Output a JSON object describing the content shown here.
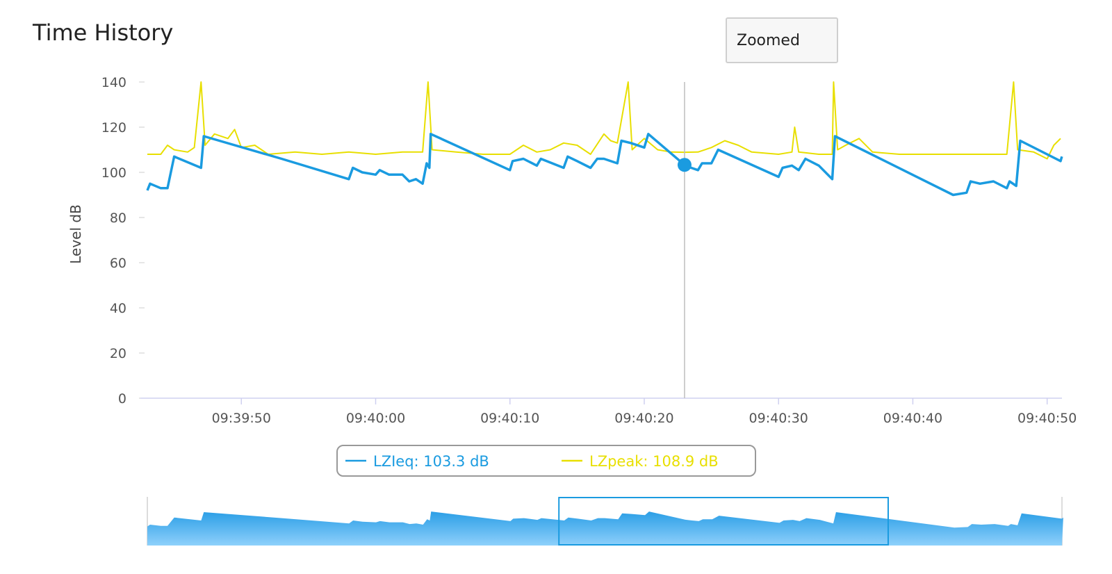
{
  "title": "Time History",
  "zoom_button": "Zoomed",
  "colors": {
    "lzieq": "#1a9be0",
    "lzpeak": "#e8df00",
    "crosshair": "#bdbdbd",
    "axis": "#cfd0f0"
  },
  "legend": {
    "items": [
      {
        "label": "LZIeq: 103.3 dB",
        "color": "#1a9be0"
      },
      {
        "label": "LZpeak: 108.9 dB",
        "color": "#e8df00"
      }
    ]
  },
  "chart_data": {
    "type": "line",
    "title": "Time History",
    "ylabel": "Level dB",
    "xlabel": "",
    "ylim": [
      0,
      140
    ],
    "yticks": [
      0,
      20,
      40,
      60,
      80,
      100,
      120,
      140
    ],
    "x_start": "09:39:43",
    "x_end": "09:40:51",
    "xticks": [
      "09:39:50",
      "09:40:00",
      "09:40:10",
      "09:40:20",
      "09:40:30",
      "09:40:40",
      "09:40:50"
    ],
    "crosshair_x": "09:40:23",
    "crosshair_marker": {
      "series": "LZIeq",
      "y": 103.3
    },
    "series": [
      {
        "name": "LZIeq",
        "color": "#1a9be0",
        "points": [
          [
            "09:39:43",
            92
          ],
          [
            "09:39:43.2",
            95
          ],
          [
            "09:39:44",
            93
          ],
          [
            "09:39:44.5",
            93
          ],
          [
            "09:39:45",
            107
          ],
          [
            "09:39:47",
            102
          ],
          [
            "09:39:47.2",
            116
          ],
          [
            "09:39:53",
            106
          ],
          [
            "09:39:58",
            97
          ],
          [
            "09:39:58.3",
            102
          ],
          [
            "09:39:59",
            100
          ],
          [
            "09:40:00",
            99
          ],
          [
            "09:40:00.3",
            101
          ],
          [
            "09:40:01",
            99
          ],
          [
            "09:40:02",
            99
          ],
          [
            "09:40:02.5",
            96
          ],
          [
            "09:40:03",
            97
          ],
          [
            "09:40:03.5",
            95
          ],
          [
            "09:40:03.8",
            104
          ],
          [
            "09:40:04",
            102
          ],
          [
            "09:40:04.1",
            117
          ],
          [
            "09:40:10",
            101
          ],
          [
            "09:40:10.2",
            105
          ],
          [
            "09:40:11",
            106
          ],
          [
            "09:40:12",
            103
          ],
          [
            "09:40:12.3",
            106
          ],
          [
            "09:40:14",
            102
          ],
          [
            "09:40:14.3",
            107
          ],
          [
            "09:40:15",
            105
          ],
          [
            "09:40:16",
            102
          ],
          [
            "09:40:16.5",
            106
          ],
          [
            "09:40:17",
            106
          ],
          [
            "09:40:18",
            104
          ],
          [
            "09:40:18.3",
            114
          ],
          [
            "09:40:19",
            113
          ],
          [
            "09:40:20",
            111
          ],
          [
            "09:40:20.3",
            117
          ],
          [
            "09:40:23",
            103.3
          ],
          [
            "09:40:23.5",
            102
          ],
          [
            "09:40:24",
            101
          ],
          [
            "09:40:24.3",
            104
          ],
          [
            "09:40:25",
            104
          ],
          [
            "09:40:25.5",
            110
          ],
          [
            "09:40:30",
            98
          ],
          [
            "09:40:30.3",
            102
          ],
          [
            "09:40:31",
            103
          ],
          [
            "09:40:31.5",
            101
          ],
          [
            "09:40:32",
            106
          ],
          [
            "09:40:33",
            103
          ],
          [
            "09:40:34",
            97
          ],
          [
            "09:40:34.2",
            116
          ],
          [
            "09:40:43",
            90
          ],
          [
            "09:40:44",
            91
          ],
          [
            "09:40:44.3",
            96
          ],
          [
            "09:40:45",
            95
          ],
          [
            "09:40:46",
            96
          ],
          [
            "09:40:47",
            93
          ],
          [
            "09:40:47.2",
            96
          ],
          [
            "09:40:47.7",
            94
          ],
          [
            "09:40:48",
            114
          ],
          [
            "09:40:51",
            105
          ],
          [
            "09:40:51.1",
            107
          ]
        ]
      },
      {
        "name": "LZpeak",
        "color": "#e8df00",
        "points": [
          [
            "09:39:43",
            108
          ],
          [
            "09:39:44",
            108
          ],
          [
            "09:39:44.5",
            112
          ],
          [
            "09:39:45",
            110
          ],
          [
            "09:39:46",
            109
          ],
          [
            "09:39:46.5",
            111
          ],
          [
            "09:39:47",
            140
          ],
          [
            "09:39:47.3",
            112
          ],
          [
            "09:39:48",
            117
          ],
          [
            "09:39:49",
            115
          ],
          [
            "09:39:49.5",
            119
          ],
          [
            "09:39:50",
            111
          ],
          [
            "09:39:51",
            112
          ],
          [
            "09:39:52",
            108
          ],
          [
            "09:39:54",
            109
          ],
          [
            "09:39:56",
            108
          ],
          [
            "09:39:58",
            109
          ],
          [
            "09:40:00",
            108
          ],
          [
            "09:40:02",
            109
          ],
          [
            "09:40:03.5",
            109
          ],
          [
            "09:40:03.9",
            140
          ],
          [
            "09:40:04.2",
            110
          ],
          [
            "09:40:06",
            109
          ],
          [
            "09:40:08",
            108
          ],
          [
            "09:40:10",
            108
          ],
          [
            "09:40:11",
            112
          ],
          [
            "09:40:12",
            109
          ],
          [
            "09:40:13",
            110
          ],
          [
            "09:40:14",
            113
          ],
          [
            "09:40:15",
            112
          ],
          [
            "09:40:16",
            108
          ],
          [
            "09:40:17",
            117
          ],
          [
            "09:40:17.5",
            114
          ],
          [
            "09:40:18",
            113
          ],
          [
            "09:40:18.8",
            140
          ],
          [
            "09:40:19.1",
            110
          ],
          [
            "09:40:20",
            115
          ],
          [
            "09:40:21",
            110
          ],
          [
            "09:40:22",
            109
          ],
          [
            "09:40:23",
            108.9
          ],
          [
            "09:40:24",
            109
          ],
          [
            "09:40:25",
            111
          ],
          [
            "09:40:26",
            114
          ],
          [
            "09:40:27",
            112
          ],
          [
            "09:40:28",
            109
          ],
          [
            "09:40:30",
            108
          ],
          [
            "09:40:31",
            109
          ],
          [
            "09:40:31.2",
            120
          ],
          [
            "09:40:31.5",
            109
          ],
          [
            "09:40:33",
            108
          ],
          [
            "09:40:34",
            108
          ],
          [
            "09:40:34.1",
            140
          ],
          [
            "09:40:34.4",
            110
          ],
          [
            "09:40:35",
            112
          ],
          [
            "09:40:36",
            115
          ],
          [
            "09:40:37",
            109
          ],
          [
            "09:40:39",
            108
          ],
          [
            "09:40:41",
            108
          ],
          [
            "09:40:43",
            108
          ],
          [
            "09:40:45",
            108
          ],
          [
            "09:40:47",
            108
          ],
          [
            "09:40:47.5",
            140
          ],
          [
            "09:40:47.8",
            110
          ],
          [
            "09:40:49",
            109
          ],
          [
            "09:40:50",
            106
          ],
          [
            "09:40:50.5",
            112
          ],
          [
            "09:40:51",
            115
          ]
        ]
      }
    ]
  },
  "navigator": {
    "series": "LZIeq",
    "window_start": 0.45,
    "window_end": 0.81
  }
}
